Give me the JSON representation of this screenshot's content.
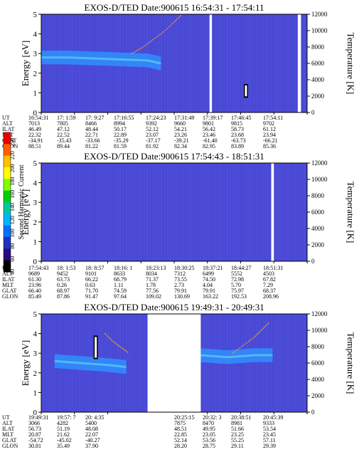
{
  "colors": {
    "background": "#4d4dd9",
    "band": "#2f8fff",
    "band_core": "#58c8f0",
    "trace": "#e8a040",
    "gap": "#ffffff"
  },
  "colorbar": {
    "label": "Second Harmonic Current",
    "ticks": [
      "250",
      "220",
      "200",
      "180",
      "160",
      "140",
      "120",
      "100",
      "80",
      "60",
      "40"
    ],
    "colors": [
      "#e80000",
      "#ff6000",
      "#ffc000",
      "#ffff00",
      "#80ff00",
      "#00d000",
      "#00c8a0",
      "#00b4ff",
      "#0070ff",
      "#2030c0",
      "#2a0a80",
      "#000000"
    ]
  },
  "chart_data": [
    {
      "type": "heatmap",
      "title": "EXOS-D/TED   Date:900615   16:54:31 - 17:54:11",
      "ylabel": "Energy [eV]",
      "y2label": "Temperature [K]",
      "ylim": [
        0,
        5
      ],
      "y2lim": [
        0,
        12000
      ],
      "yticks": [
        "0",
        "1",
        "2",
        "3",
        "4",
        "5"
      ],
      "y2ticks": [
        "0",
        "2000",
        "4000",
        "6000",
        "8000",
        "10000",
        "12000"
      ],
      "band": [
        [
          0,
          2.8
        ],
        [
          0.1,
          2.8
        ],
        [
          0.2,
          2.75
        ],
        [
          0.3,
          2.7
        ],
        [
          0.4,
          2.65
        ],
        [
          0.45,
          2.5
        ]
      ],
      "trace": [
        [
          0.34,
          3.0
        ],
        [
          0.38,
          3.3
        ],
        [
          0.42,
          3.7
        ],
        [
          0.46,
          4.1
        ],
        [
          0.5,
          4.6
        ],
        [
          0.53,
          5.0
        ]
      ],
      "gaps": [
        [
          0.633,
          0.642
        ],
        [
          0.965,
          0.977
        ]
      ],
      "markers": [
        [
          0.77,
          0.75,
          1.45
        ]
      ],
      "table": {
        "rows": [
          "UT",
          "ALT",
          "ILAT",
          "MLT",
          "GLAT",
          "GLON"
        ],
        "columns": [
          [
            "16:54:31",
            "7013",
            "46.49",
            "22.32",
            "-34.91",
            "88.51"
          ],
          [
            "17: 1:59",
            "7805",
            "47.12",
            "22.52",
            "-35.43",
            "89.44"
          ],
          [
            "17: 9:27",
            "8466",
            "48.44",
            "22.71",
            "-33.66",
            "81.22"
          ],
          [
            "17:16:55",
            "8994",
            "50.17",
            "22.89",
            "-35.29",
            "81.59"
          ],
          [
            "17:24:23",
            "9392",
            "52.12",
            "23.07",
            "-37.17",
            "81.92"
          ],
          [
            "17:31:49",
            "9660",
            "54.21",
            "23.26",
            "-39.21",
            "82.34"
          ],
          [
            "17:39:17",
            "9801",
            "56.42",
            "23.46",
            "-61.40",
            "82.95"
          ],
          [
            "17:46:45",
            "9815",
            "58.73",
            "23.68",
            "-63.73",
            "83.89"
          ],
          [
            "17:54:11",
            "9702",
            "61.12",
            "23.94",
            "-66.21",
            "85.36"
          ]
        ]
      }
    },
    {
      "type": "heatmap",
      "title": "EXOS-D/TED   Date:900615   17:54:43 - 18:51:31",
      "ylabel": "Energy [eV]",
      "y2label": "Temperature [K]",
      "ylim": [
        0,
        5
      ],
      "y2lim": [
        0,
        12000
      ],
      "yticks": [
        "0",
        "1",
        "2",
        "3",
        "4",
        "5"
      ],
      "y2ticks": [
        "0",
        "2000",
        "4000",
        "6000",
        "8000",
        "10000",
        "12000"
      ],
      "band": [],
      "trace": [],
      "gaps": [
        [
          0.865,
          0.875
        ]
      ],
      "markers": [],
      "table": {
        "rows": [
          "UT",
          "ALT",
          "ILAT",
          "MLT",
          "GLAT",
          "GLON"
        ],
        "columns": [
          [
            "17:54:43",
            "9689",
            "61.30",
            "23.96",
            "66.40",
            "85.49"
          ],
          [
            "18: 1:53",
            "9452",
            "63.73",
            "0.26",
            "68.97",
            "87.86"
          ],
          [
            "18: 8:57",
            "9101",
            "66.22",
            "0.63",
            "71.70",
            "91.47"
          ],
          [
            "18:16: 1",
            "8633",
            "68.79",
            "1.11",
            "74.59",
            "97.64"
          ],
          [
            "18:23:13",
            "8034",
            "71.37",
            "1.78",
            "77.56",
            "109.02"
          ],
          [
            "18:30:25",
            "7312",
            "73.55",
            "2.73",
            "79.91",
            "130.69"
          ],
          [
            "18:37:21",
            "6499",
            "74.50",
            "4.04",
            "79.91",
            "163.22"
          ],
          [
            "18:44:27",
            "5552",
            "72.98",
            "5.70",
            "75.97",
            "192.53"
          ],
          [
            "18:51:31",
            "4503",
            "67.82",
            "7.29",
            "68.37",
            "208.96"
          ]
        ]
      }
    },
    {
      "type": "heatmap",
      "title": "EXOS-D/TED   Date:900615   19:49:31 - 20:49:31",
      "ylabel": "Energy [eV]",
      "y2label": "Temperature [K]",
      "ylim": [
        0,
        5
      ],
      "y2lim": [
        0,
        12000
      ],
      "yticks": [
        "0",
        "1",
        "2",
        "3",
        "4",
        "5"
      ],
      "y2ticks": [
        "0",
        "2000",
        "4000",
        "6000",
        "8000",
        "10000",
        "12000"
      ],
      "band": [
        [
          0.05,
          2.6
        ],
        [
          0.15,
          2.5
        ],
        [
          0.25,
          2.4
        ],
        [
          0.32,
          2.3
        ]
      ],
      "band2": [
        [
          0.6,
          2.9
        ],
        [
          0.7,
          2.8
        ],
        [
          0.8,
          2.9
        ],
        [
          0.87,
          2.9
        ]
      ],
      "trace": [
        [
          0.24,
          4.0
        ],
        [
          0.27,
          3.6
        ],
        [
          0.3,
          3.3
        ],
        [
          0.33,
          3.0
        ]
      ],
      "trace2": [
        [
          0.72,
          3.0
        ],
        [
          0.76,
          3.4
        ],
        [
          0.8,
          3.8
        ],
        [
          0.83,
          4.2
        ],
        [
          0.86,
          4.6
        ]
      ],
      "gaps": [
        [
          0.4,
          0.6
        ]
      ],
      "markers": [
        [
          0.205,
          2.7,
          3.9
        ]
      ],
      "table": {
        "rows": [
          "UT",
          "ALT",
          "ILAT",
          "MLT",
          "GLAT",
          "GLON"
        ],
        "columns": [
          [
            "19:49:31",
            "3066",
            "56.73",
            "20.87",
            "-54.72",
            "30.81"
          ],
          [
            "19:57: 7",
            "4282",
            "51.19",
            "21.62",
            "-45.02",
            "35.49"
          ],
          [
            "20: 4:35",
            "5400",
            "48.08",
            "22.07",
            "-40.27",
            "37.90"
          ],
          [
            "",
            "",
            "",
            "",
            "",
            ""
          ],
          [
            "",
            "",
            "",
            "",
            "",
            ""
          ],
          [
            "20:25:15",
            "7875",
            "48.51",
            "22.85",
            "52.14",
            "28.20"
          ],
          [
            "20:32: 3",
            "8470",
            "49.95",
            "23.05",
            "53.56",
            "28.75"
          ],
          [
            "20:38:51",
            "8981",
            "51.66",
            "23.25",
            "55.25",
            "29.11"
          ],
          [
            "20:45:39",
            "9333",
            "53.54",
            "23.45",
            "57.11",
            "29.39"
          ]
        ]
      }
    }
  ]
}
